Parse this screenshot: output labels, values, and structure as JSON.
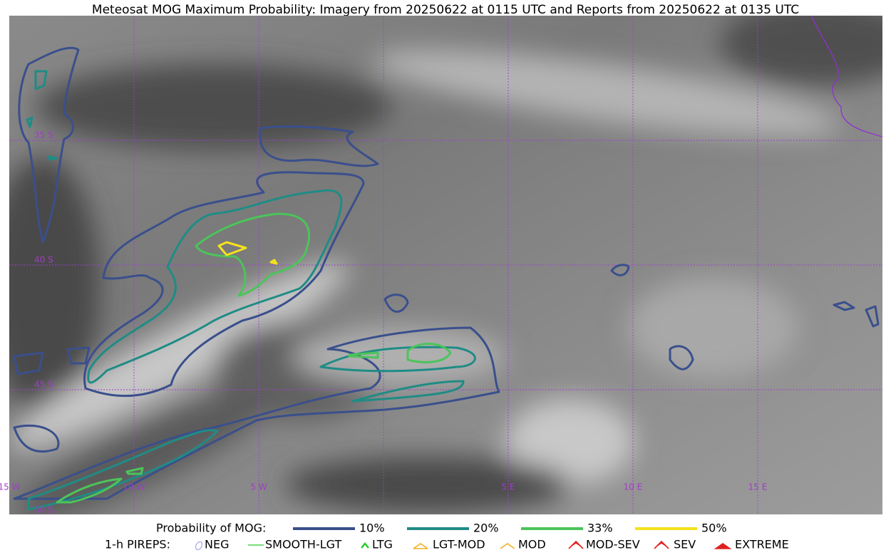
{
  "title": "Meteosat MOG Maximum Probability: Imagery from 20250622 at 0115 UTC and Reports from 20250622 at 0135 UTC",
  "lon_labels": [
    "15 W",
    "10 W",
    "5 W",
    "5 E",
    "10 E",
    "15 E"
  ],
  "lat_labels": [
    "35 S",
    "40 S",
    "45 S",
    "50 S"
  ],
  "probability_legend": {
    "label": "Probability of MOG:",
    "items": [
      {
        "label": "10%",
        "color": "#3a4f8c"
      },
      {
        "label": "20%",
        "color": "#1f8c85"
      },
      {
        "label": "33%",
        "color": "#4cc45a"
      },
      {
        "label": "50%",
        "color": "#f5e11e"
      }
    ]
  },
  "pirep_legend": {
    "label": "1-h PIREPS:",
    "items": [
      "NEG",
      "SMOOTH-LGT",
      "LTG",
      "LGT-MOD",
      "MOD",
      "MOD-SEV",
      "SEV",
      "EXTREME"
    ]
  }
}
